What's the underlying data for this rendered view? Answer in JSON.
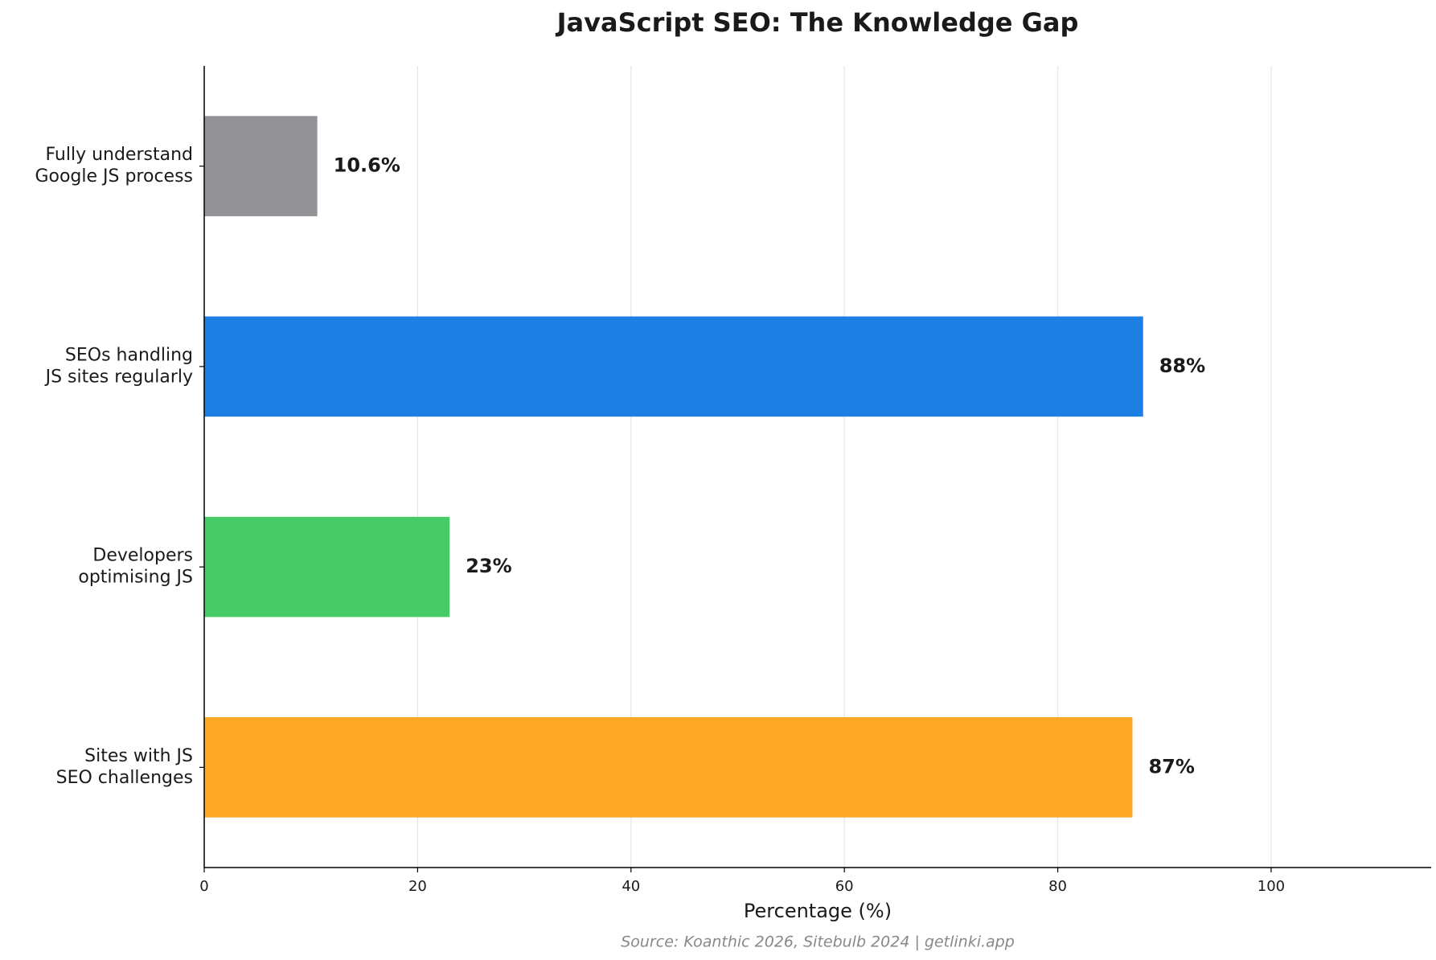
{
  "chart_data": {
    "type": "barh",
    "title": "JavaScript SEO: The Knowledge Gap",
    "xlabel": "Percentage (%)",
    "source": "Source: Koanthic 2026, Sitebulb 2024 | getlinki.app",
    "categories": [
      "Fully understand\nGoogle JS process",
      "SEOs handling\nJS sites regularly",
      "Developers\noptimising JS",
      "Sites with JS\nSEO challenges"
    ],
    "values": [
      10.6,
      88,
      23,
      87
    ],
    "value_labels": [
      "10.6%",
      "88%",
      "23%",
      "87%"
    ],
    "colors": [
      "#939297",
      "#1c7fe3",
      "#48cb66",
      "#fda724"
    ],
    "xlim": [
      0,
      115
    ],
    "xticks": [
      0,
      20,
      40,
      60,
      80,
      100
    ],
    "grid": true
  }
}
